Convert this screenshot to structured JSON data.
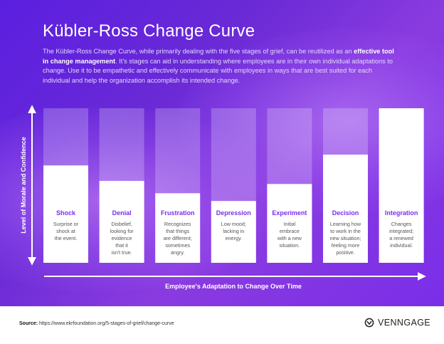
{
  "header": {
    "title": "Kübler-Ross Change Curve",
    "intro_before": "The Kübler-Ross Change Curve, while primarily dealing with the five stages of grief, can be reutilized as an ",
    "intro_bold": "effective tool in change management",
    "intro_after": ". It's stages can aid in understanding where employees are in their own individual adaptations to change. Use it to be empathetic and effectively communicate with employees in ways that are best suited for each individual and help the organization accomplish its intended change."
  },
  "chart_data": {
    "type": "bar",
    "ylabel": "Level of Morale and Confidence",
    "xlabel": "Employee's Adaptation to Change Over Time",
    "ylim": [
      0,
      1
    ],
    "grid": false,
    "categories": [
      "Shock",
      "Denial",
      "Frustration",
      "Depression",
      "Experiment",
      "Decision",
      "Integration"
    ],
    "values": [
      0.63,
      0.53,
      0.45,
      0.4,
      0.51,
      0.7,
      1.0
    ],
    "descriptions": [
      [
        "Surprise or",
        "shock at",
        "the event."
      ],
      [
        "Disbelief,",
        "looking for",
        "evidence",
        "that it",
        "isn't true."
      ],
      [
        "Recognizes",
        "that things",
        "are different;",
        "sometimes",
        "angry."
      ],
      [
        "Low mood;",
        "lacking in",
        "energy."
      ],
      [
        "Initial",
        "embrace",
        "with a new",
        "situation."
      ],
      [
        "Learning how",
        "to work in the",
        "new situation;",
        "feeling more",
        "positive."
      ],
      [
        "Changes",
        "integrated;",
        "a renewed",
        "individual."
      ]
    ]
  },
  "colors": {
    "label": "#7b2ff0",
    "text": "#555555",
    "bar": "#ffffff",
    "track": "rgba(255,255,255,0.22)"
  },
  "footer": {
    "source_label": "Source:",
    "source_url": "https://www.ekrfoundation.org/5-stages-of-grief/change-curve",
    "brand": "VENNGAGE"
  }
}
